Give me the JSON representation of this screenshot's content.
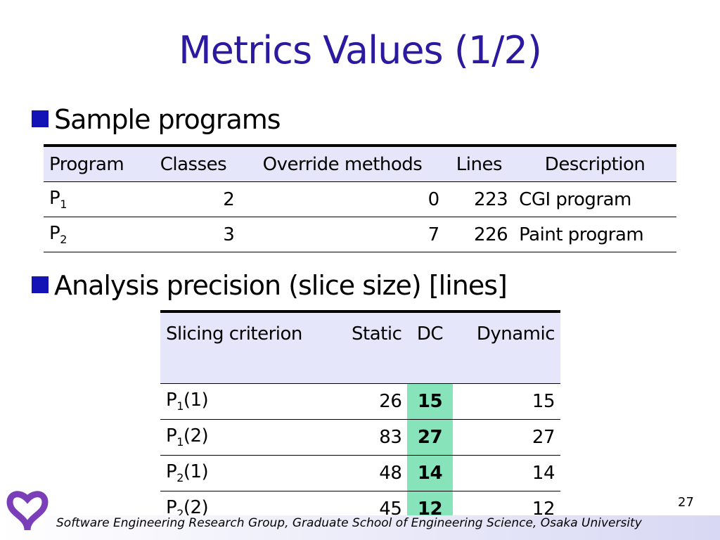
{
  "title": "Metrics Values (1/2)",
  "bullets": [
    "Sample programs",
    "Analysis precision (slice size) [lines]"
  ],
  "table1": {
    "header": [
      "Program",
      "Classes",
      "Override methods",
      "Lines",
      "Description"
    ],
    "rows": [
      [
        {
          "base": "P",
          "sub": "1"
        },
        2,
        0,
        223,
        "CGI program"
      ],
      [
        {
          "base": "P",
          "sub": "2"
        },
        3,
        7,
        226,
        "Paint program"
      ]
    ]
  },
  "table2": {
    "header": [
      "Slicing criterion",
      "Static",
      "DC",
      "Dynamic"
    ],
    "rows": [
      [
        {
          "base": "P",
          "sub": "1",
          "suffix": "(1)"
        },
        26,
        15,
        15
      ],
      [
        {
          "base": "P",
          "sub": "1",
          "suffix": "(2)"
        },
        83,
        27,
        27
      ],
      [
        {
          "base": "P",
          "sub": "2",
          "suffix": "(1)"
        },
        48,
        14,
        14
      ],
      [
        {
          "base": "P",
          "sub": "2",
          "suffix": "(2)"
        },
        45,
        12,
        12
      ]
    ]
  },
  "page_number": "27",
  "footer": "Software Engineering Research Group, Graduate School of Engineering Science, Osaka University"
}
